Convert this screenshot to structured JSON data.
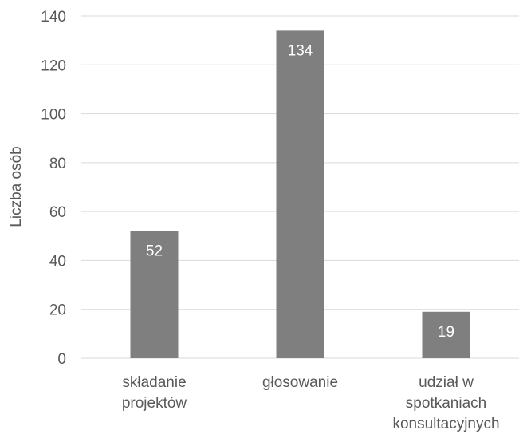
{
  "chart_data": {
    "type": "bar",
    "title": "",
    "xlabel": "",
    "ylabel": "Liczba osób",
    "ylim": [
      0,
      140
    ],
    "yticks": [
      0,
      20,
      40,
      60,
      80,
      100,
      120,
      140
    ],
    "grid": true,
    "legend": "none",
    "categories": [
      [
        "składanie",
        "projektów"
      ],
      [
        "głosowanie"
      ],
      [
        "udział w",
        "spotkaniach",
        "konsultacyjnych"
      ]
    ],
    "values": [
      52,
      134,
      19
    ],
    "data_labels": [
      "52",
      "134",
      "19"
    ],
    "colors": {
      "bar": "#7f7f7f",
      "grid": "#d9d9d9",
      "axis": "#d9d9d9",
      "text": "#595959",
      "data_label": "#ffffff"
    }
  }
}
